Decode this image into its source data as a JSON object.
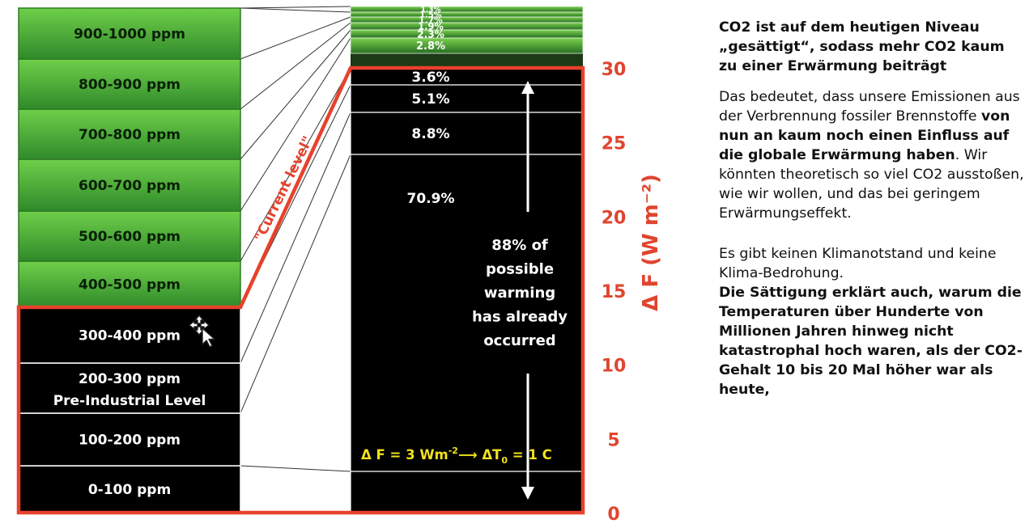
{
  "chart_data": {
    "type": "bar",
    "left_column": {
      "categories": [
        "0-100 ppm",
        "100-200 ppm",
        "200-300 ppm",
        "300-400 ppm",
        "400-500 ppm",
        "500-600 ppm",
        "600-700 ppm",
        "700-800 ppm",
        "800-900 ppm",
        "900-1000 ppm"
      ],
      "category_sublabels": {
        "200-300 ppm": "Pre-Industrial Level"
      },
      "current_level_label": "\"Current level\""
    },
    "right_column": {
      "segments_percent_top_to_bottom": [
        "1.3%",
        "1.5%",
        "1.7%",
        "1.9%",
        "2.3%",
        "2.8%",
        "3.6%",
        "5.1%",
        "8.8%",
        "70.9%"
      ],
      "values_top_to_bottom": [
        1.3,
        1.5,
        1.7,
        1.9,
        2.3,
        2.8,
        3.6,
        5.1,
        8.8,
        70.9
      ],
      "annotation_lines": [
        "88% of",
        "possible",
        "warming",
        "has already",
        "occurred"
      ],
      "formula": {
        "prefix": "Δ F = 3 Wm",
        "exp": "-2",
        "arrow": "⟶",
        "mid": " ΔT",
        "sub": "0",
        "suffix": " = 1 C"
      }
    },
    "y_axis": {
      "label": "Δ F (W m⁻²)",
      "ticks": [
        "0",
        "5",
        "10",
        "15",
        "20",
        "25",
        "30"
      ],
      "tick_values": [
        0,
        5,
        10,
        15,
        20,
        25,
        30
      ],
      "ylim": [
        0,
        30
      ]
    },
    "colors": {
      "saturated": "#4aa83a",
      "unsaturated": "#000000",
      "outline": "#e8412c",
      "axis": "#e0452f",
      "formula": "#f2e21c"
    }
  },
  "text_panel": {
    "heading": "CO2 ist auf dem heutigen Niveau „gesättigt“, sodass mehr CO2 kaum zu einer Erwärmung beiträgt",
    "para1_a": "Das bedeutet, dass unsere Emissionen aus der Verbrennung fossiler Brennstoffe ",
    "para1_b": "von nun an kaum noch einen Einfluss auf die globale Erwärmung haben",
    "para1_c": ". Wir könnten theoretisch so viel CO2 ausstoßen, wie wir wollen, und das bei geringem Erwärmungseffekt.",
    "para2": "Es gibt keinen Klimanotstand und keine Klima-Bedrohung.",
    "para3": "Die Sättigung erklärt auch, warum die Temperaturen über Hunderte von Millionen Jahren hinweg nicht katastrophal hoch waren, als der CO2-Gehalt 10 bis 20 Mal höher war als heute,"
  },
  "cursor": {
    "icon": "move-cursor-icon"
  }
}
